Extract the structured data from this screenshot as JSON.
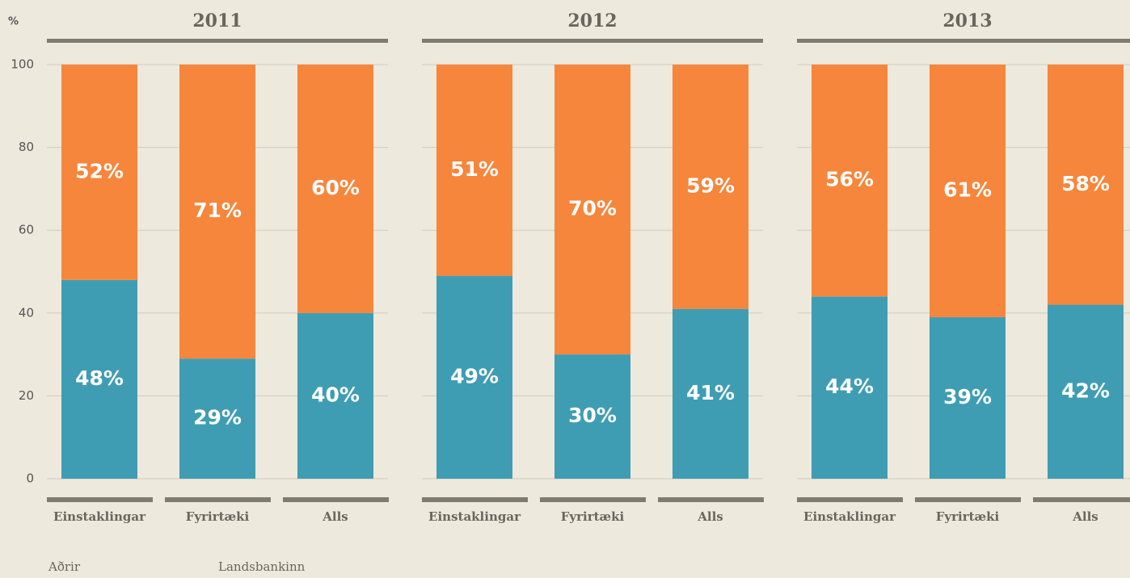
{
  "chart_data": {
    "type": "bar",
    "stacked": true,
    "y_label": "%",
    "ylim": [
      0,
      100
    ],
    "yticks": [
      0,
      20,
      40,
      60,
      80,
      100
    ],
    "grid": true,
    "series": [
      {
        "name": "Aðrir",
        "color": "#f6863c"
      },
      {
        "name": "Landsbankinn",
        "color": "#3f9db3"
      }
    ],
    "panels": [
      {
        "title": "2011",
        "categories": [
          "Einstaklingar",
          "Fyrirtæki",
          "Alls"
        ],
        "values": [
          [
            52,
            71,
            60
          ],
          [
            48,
            29,
            40
          ]
        ],
        "value_labels": [
          [
            "52%",
            "71%",
            "60%"
          ],
          [
            "48%",
            "29%",
            "40%"
          ]
        ]
      },
      {
        "title": "2012",
        "categories": [
          "Einstaklingar",
          "Fyrirtæki",
          "Alls"
        ],
        "values": [
          [
            51,
            70,
            59
          ],
          [
            49,
            30,
            41
          ]
        ],
        "value_labels": [
          [
            "51%",
            "70%",
            "59%"
          ],
          [
            "49%",
            "30%",
            "41%"
          ]
        ]
      },
      {
        "title": "2013",
        "categories": [
          "Einstaklingar",
          "Fyrirtæki",
          "Alls"
        ],
        "values": [
          [
            56,
            61,
            58
          ],
          [
            44,
            39,
            42
          ]
        ],
        "value_labels": [
          [
            "56%",
            "61%",
            "58%"
          ],
          [
            "44%",
            "39%",
            "42%"
          ]
        ]
      }
    ]
  }
}
